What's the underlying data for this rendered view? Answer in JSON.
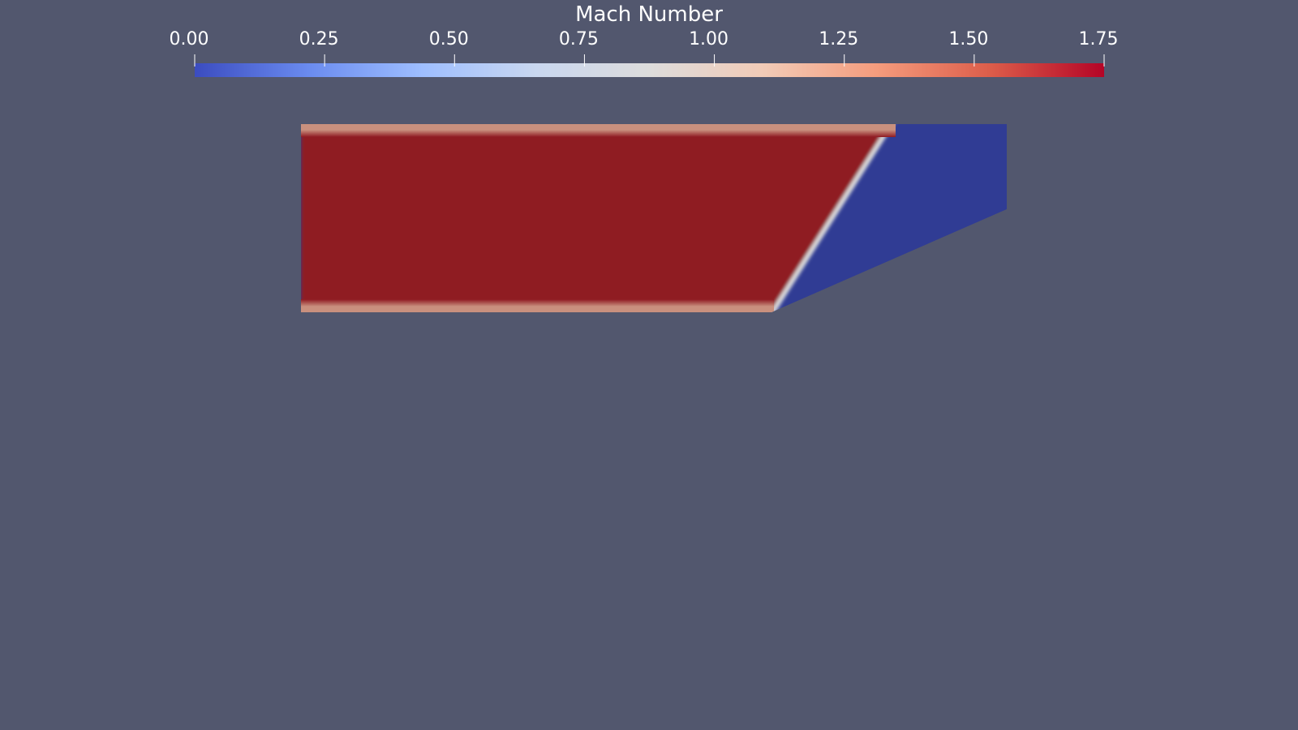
{
  "colorbar": {
    "title": "Mach Number",
    "range": [
      0.0,
      1.75
    ],
    "ticks": [
      {
        "value": 0.0,
        "label": "0.00"
      },
      {
        "value": 0.25,
        "label": "0.25"
      },
      {
        "value": 0.5,
        "label": "0.50"
      },
      {
        "value": 0.75,
        "label": "0.75"
      },
      {
        "value": 1.0,
        "label": "1.00"
      },
      {
        "value": 1.25,
        "label": "1.25"
      },
      {
        "value": 1.5,
        "label": "1.50"
      },
      {
        "value": 1.75,
        "label": "1.75"
      }
    ],
    "colormap": [
      "#3b4cc0",
      "#6a8bef",
      "#9ebeff",
      "#c9d7f0",
      "#dddcdc",
      "#f2cbb7",
      "#f59c7d",
      "#dc5d4a",
      "#b40426"
    ],
    "colormap_name": "Cool to Warm"
  },
  "field": {
    "supersonic_region_mach": 1.75,
    "subsonic_region_mach": 0.0,
    "supersonic_color": "#8f1a22",
    "subsonic_color": "#303c94",
    "boundary_layer_color": "#c9907e",
    "shock_color": "#dcdcdc"
  },
  "background_color": "#52576e"
}
